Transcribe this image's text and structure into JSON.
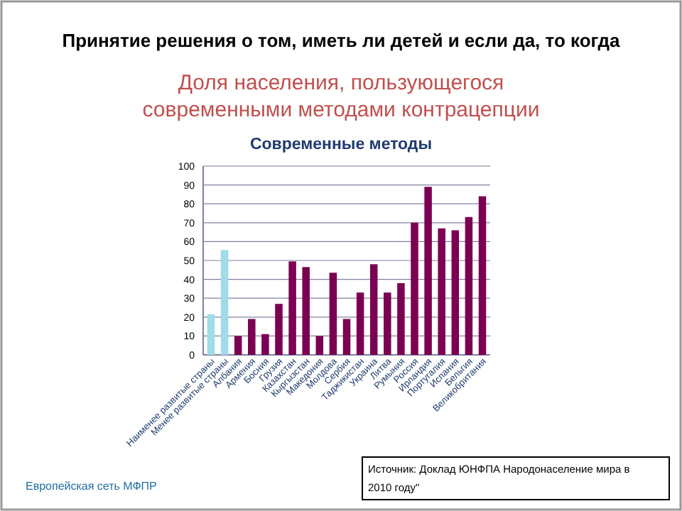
{
  "chart_data": {
    "type": "bar",
    "title": "Принятие решения о том, иметь ли детей и если да, то когда",
    "subtitle": "Доля населения,  пользующегося современными методами контрацепции",
    "categories": [
      "Наименее развитые страны",
      "Менее развитые страны",
      "Албания",
      "Армения",
      "Босния",
      "Грузия",
      "Казахстан",
      "Кыргызстан",
      "Македония",
      "Молдова",
      "Сербия",
      "Таджикистан",
      "Украина",
      "Литва",
      "Румыния",
      "Россия",
      "Ирландия",
      "Португалия",
      "Испания",
      "Бельгия",
      "Великобритания"
    ],
    "values": [
      21.5,
      55.5,
      10,
      19,
      11,
      27,
      49.5,
      46.5,
      10,
      43.5,
      19,
      33,
      48,
      33,
      38,
      70,
      89,
      67,
      66,
      73,
      84
    ],
    "colors": [
      "#9fdbe8",
      "#9fdbe8",
      "#7b0052",
      "#7b0052",
      "#7b0052",
      "#7b0052",
      "#7b0052",
      "#7b0052",
      "#7b0052",
      "#7b0052",
      "#7b0052",
      "#7b0052",
      "#7b0052",
      "#7b0052",
      "#7b0052",
      "#7b0052",
      "#7b0052",
      "#7b0052",
      "#7b0052",
      "#7b0052",
      "#7b0052"
    ],
    "ylim": [
      0,
      100
    ],
    "yticks": [
      0,
      10,
      20,
      30,
      40,
      50,
      60,
      70,
      80,
      90,
      100
    ],
    "grid": "y",
    "annotations": [
      "Современные  методы",
      "Европейская  сеть  МФПР",
      "Источник: Доклад ЮНФПА  Народонаселение  мира в 2010 году\""
    ]
  }
}
